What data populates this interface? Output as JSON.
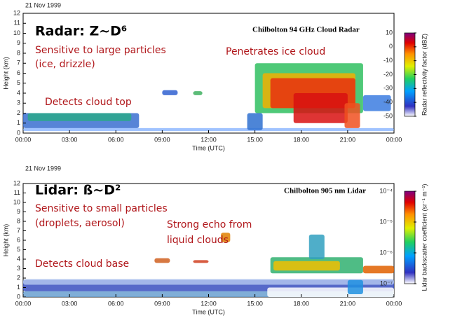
{
  "chart_data": [
    {
      "type": "heatmap",
      "date": "21 Nov 1999",
      "title": "Chilbolton 94 GHz Cloud Radar",
      "xlabel": "Time (UTC)",
      "ylabel": "Height (km)",
      "xlim": [
        0,
        24
      ],
      "xticks": [
        {
          "value": 0,
          "label": "00:00"
        },
        {
          "value": 3,
          "label": "03:00"
        },
        {
          "value": 6,
          "label": "06:00"
        },
        {
          "value": 9,
          "label": "09:00"
        },
        {
          "value": 12,
          "label": "12:00"
        },
        {
          "value": 15,
          "label": "15:00"
        },
        {
          "value": 18,
          "label": "18:00"
        },
        {
          "value": 21,
          "label": "21:00"
        },
        {
          "value": 24,
          "label": "00:00"
        }
      ],
      "ylim": [
        0,
        12
      ],
      "yticks": [
        0,
        1,
        2,
        3,
        4,
        5,
        6,
        7,
        8,
        9,
        10,
        11,
        12
      ],
      "colorbar": {
        "label": "Radar reflectivity factor (dBZ)",
        "lim": [
          -50,
          10
        ],
        "ticks": [
          10,
          0,
          -10,
          -20,
          -30,
          -40,
          -50
        ],
        "log": false
      },
      "annotations": [
        "Radar: Z~D⁶",
        "Sensitive to large particles",
        "(ice, drizzle)",
        "Penetrates ice cloud",
        "Detects cloud top"
      ]
    },
    {
      "type": "heatmap",
      "date": "21 Nov 1999",
      "title": "Chilbolton 905 nm Lidar",
      "xlabel": "Time (UTC)",
      "ylabel": "Height (km)",
      "xlim": [
        0,
        24
      ],
      "xticks": [
        {
          "value": 0,
          "label": "00:00"
        },
        {
          "value": 3,
          "label": "03:00"
        },
        {
          "value": 6,
          "label": "06:00"
        },
        {
          "value": 9,
          "label": "09:00"
        },
        {
          "value": 12,
          "label": "12:00"
        },
        {
          "value": 15,
          "label": "15:00"
        },
        {
          "value": 18,
          "label": "18:00"
        },
        {
          "value": 21,
          "label": "21:00"
        },
        {
          "value": 24,
          "label": "00:00"
        }
      ],
      "ylim": [
        0,
        12
      ],
      "yticks": [
        0,
        1,
        2,
        3,
        4,
        5,
        6,
        7,
        8,
        9,
        10,
        11,
        12
      ],
      "colorbar": {
        "label": "Lidar backscatter coefficient (sr⁻¹ m⁻¹)",
        "lim": [
          1e-07,
          0.0001
        ],
        "ticks": [
          {
            "value": 0.0001,
            "label": "10⁻⁴"
          },
          {
            "value": 1e-05,
            "label": "10⁻⁵"
          },
          {
            "value": 1e-06,
            "label": "10⁻⁶"
          },
          {
            "value": 1e-07,
            "label": "10⁻⁷"
          }
        ],
        "log": true
      },
      "annotations": [
        "Lidar: ß~D²",
        "Sensitive to small particles",
        "(droplets, aerosol)",
        "Strong echo from",
        "liquid clouds",
        "Detects cloud base"
      ]
    }
  ]
}
